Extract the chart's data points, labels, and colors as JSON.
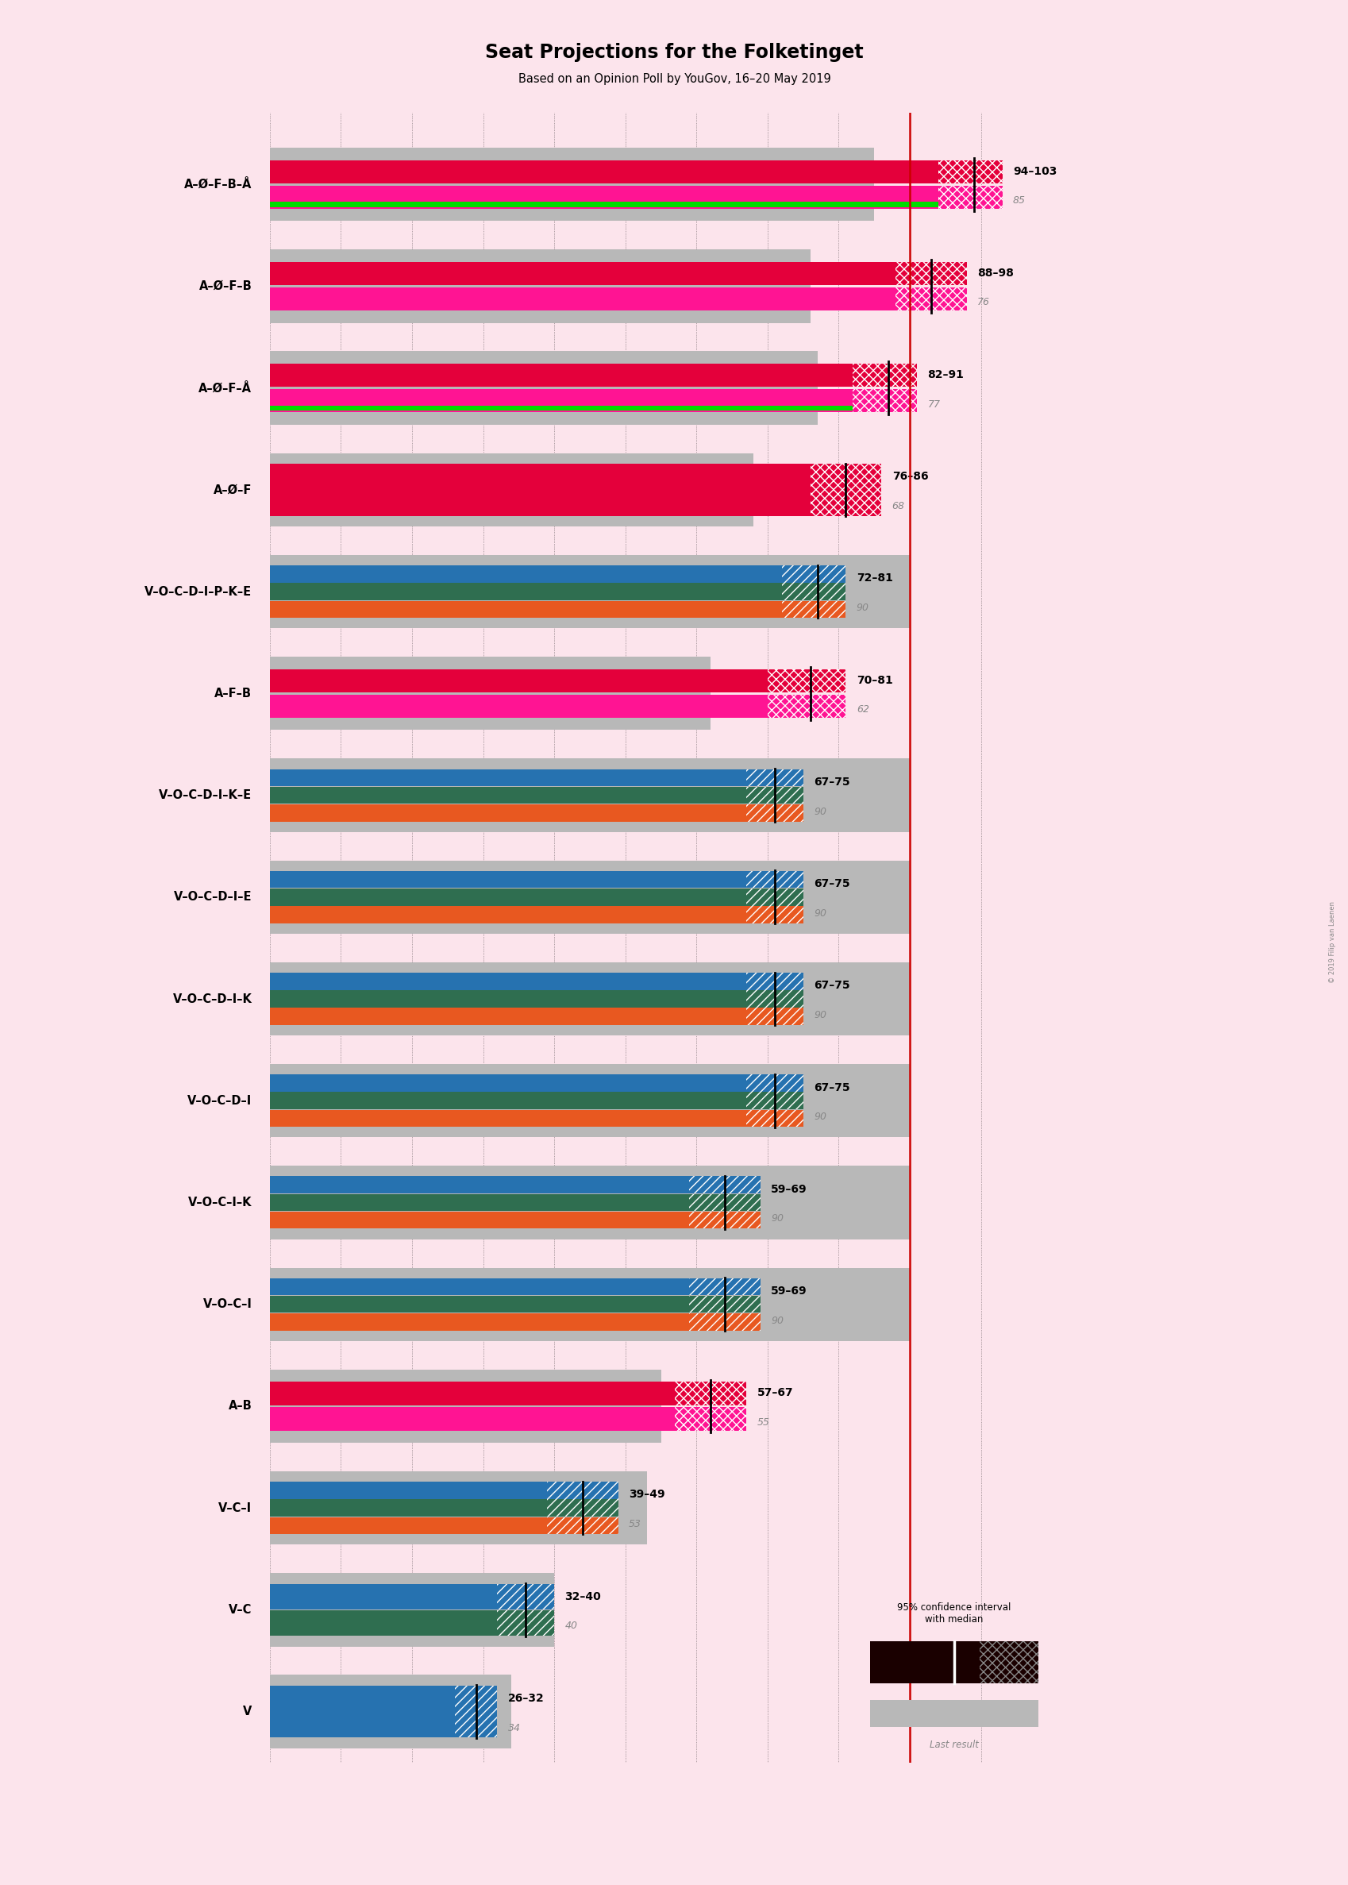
{
  "title": "Seat Projections for the Folketinget",
  "subtitle": "Based on an Opinion Poll by YouGov, 16–20 May 2019",
  "background_color": "#fce4ec",
  "watermark": "© 2019 Filip van Laenen",
  "coalitions": [
    {
      "label": "A–Ø–F–B–Å",
      "ci_low": 94,
      "ci_high": 103,
      "median": 99,
      "last_result": 85,
      "bar_colors": [
        "#E4003B",
        "#FF1493"
      ],
      "hatch_color": "#E4003B",
      "has_green": true,
      "type": "left2",
      "underline": false
    },
    {
      "label": "A–Ø–F–B",
      "ci_low": 88,
      "ci_high": 98,
      "median": 93,
      "last_result": 76,
      "bar_colors": [
        "#E4003B",
        "#FF1493"
      ],
      "hatch_color": "#E4003B",
      "has_green": false,
      "type": "left2",
      "underline": false
    },
    {
      "label": "A–Ø–F–Å",
      "ci_low": 82,
      "ci_high": 91,
      "median": 87,
      "last_result": 77,
      "bar_colors": [
        "#E4003B",
        "#FF1493"
      ],
      "hatch_color": "#E4003B",
      "has_green": true,
      "type": "left2",
      "underline": false
    },
    {
      "label": "A–Ø–F",
      "ci_low": 76,
      "ci_high": 86,
      "median": 81,
      "last_result": 68,
      "bar_colors": [
        "#E4003B"
      ],
      "hatch_color": "#E4003B",
      "has_green": false,
      "type": "left1",
      "underline": false
    },
    {
      "label": "V–O–C–D–I–P–K–E",
      "ci_low": 72,
      "ci_high": 81,
      "median": 77,
      "last_result": 90,
      "bar_colors": [
        "#2672B0",
        "#2F6E50",
        "#E85820"
      ],
      "hatch_color": "#2672B0",
      "has_green": false,
      "type": "right3",
      "underline": false
    },
    {
      "label": "A–F–B",
      "ci_low": 70,
      "ci_high": 81,
      "median": 76,
      "last_result": 62,
      "bar_colors": [
        "#E4003B",
        "#FF1493"
      ],
      "hatch_color": "#E4003B",
      "has_green": false,
      "type": "left2",
      "underline": false
    },
    {
      "label": "V–O–C–D–I–K–E",
      "ci_low": 67,
      "ci_high": 75,
      "median": 71,
      "last_result": 90,
      "bar_colors": [
        "#2672B0",
        "#2F6E50",
        "#E85820"
      ],
      "hatch_color": "#2672B0",
      "has_green": false,
      "type": "right3",
      "underline": false
    },
    {
      "label": "V–O–C–D–I–E",
      "ci_low": 67,
      "ci_high": 75,
      "median": 71,
      "last_result": 90,
      "bar_colors": [
        "#2672B0",
        "#2F6E50",
        "#E85820"
      ],
      "hatch_color": "#2672B0",
      "has_green": false,
      "type": "right3",
      "underline": false
    },
    {
      "label": "V–O–C–D–I–K",
      "ci_low": 67,
      "ci_high": 75,
      "median": 71,
      "last_result": 90,
      "bar_colors": [
        "#2672B0",
        "#2F6E50",
        "#E85820"
      ],
      "hatch_color": "#2672B0",
      "has_green": false,
      "type": "right3",
      "underline": false
    },
    {
      "label": "V–O–C–D–I",
      "ci_low": 67,
      "ci_high": 75,
      "median": 71,
      "last_result": 90,
      "bar_colors": [
        "#2672B0",
        "#2F6E50",
        "#E85820"
      ],
      "hatch_color": "#2672B0",
      "has_green": false,
      "type": "right3",
      "underline": false
    },
    {
      "label": "V–O–C–I–K",
      "ci_low": 59,
      "ci_high": 69,
      "median": 64,
      "last_result": 90,
      "bar_colors": [
        "#2672B0",
        "#2F6E50",
        "#E85820"
      ],
      "hatch_color": "#2672B0",
      "has_green": false,
      "type": "right3",
      "underline": false
    },
    {
      "label": "V–O–C–I",
      "ci_low": 59,
      "ci_high": 69,
      "median": 64,
      "last_result": 90,
      "bar_colors": [
        "#2672B0",
        "#2F6E50",
        "#E85820"
      ],
      "hatch_color": "#2672B0",
      "has_green": false,
      "type": "right3",
      "underline": true
    },
    {
      "label": "A–B",
      "ci_low": 57,
      "ci_high": 67,
      "median": 62,
      "last_result": 55,
      "bar_colors": [
        "#E4003B",
        "#FF1493"
      ],
      "hatch_color": "#E4003B",
      "has_green": false,
      "type": "left2",
      "underline": false
    },
    {
      "label": "V–C–I",
      "ci_low": 39,
      "ci_high": 49,
      "median": 44,
      "last_result": 53,
      "bar_colors": [
        "#2672B0",
        "#2F6E50",
        "#E85820"
      ],
      "hatch_color": "#2672B0",
      "has_green": false,
      "type": "right3",
      "underline": true
    },
    {
      "label": "V–C",
      "ci_low": 32,
      "ci_high": 40,
      "median": 36,
      "last_result": 40,
      "bar_colors": [
        "#2672B0",
        "#2F6E50"
      ],
      "hatch_color": "#2672B0",
      "has_green": false,
      "type": "right2",
      "underline": false
    },
    {
      "label": "V",
      "ci_low": 26,
      "ci_high": 32,
      "median": 29,
      "last_result": 34,
      "bar_colors": [
        "#2672B0"
      ],
      "hatch_color": "#2672B0",
      "has_green": false,
      "type": "right1",
      "underline": false
    }
  ],
  "x_max": 110,
  "majority_line": 90,
  "green_color": "#00DD00",
  "gray_color": "#B8B8B8",
  "legend_dark_color": "#1A0000"
}
